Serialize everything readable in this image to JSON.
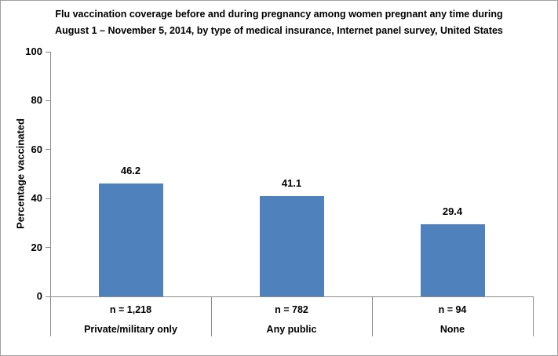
{
  "title": {
    "line1": "Flu vaccination coverage before and during pregnancy among women pregnant any time during",
    "line2": "August 1 – November 5, 2014, by type of medical insurance, Internet panel survey, United States"
  },
  "chart_data": {
    "type": "bar",
    "title": "Flu vaccination coverage before and during pregnancy among women pregnant any time during August 1 – November 5, 2014, by type of medical insurance, Internet panel survey, United States",
    "categories": [
      "Private/military only",
      "Any public",
      "None"
    ],
    "sample_sizes": [
      "n = 1,218",
      "n = 782",
      "n = 94"
    ],
    "values": [
      46.2,
      41.1,
      29.4
    ],
    "value_labels": [
      "46.2",
      "41.1",
      "29.4"
    ],
    "xlabel": "",
    "ylabel": "Percentage vaccinated",
    "ylim": [
      0,
      100
    ],
    "yticks": [
      0,
      20,
      40,
      60,
      80,
      100
    ],
    "grid": false,
    "legend": false,
    "bar_color": "#4f81bd",
    "axis_color": "#8b8b8b",
    "text_color": "#000000"
  }
}
